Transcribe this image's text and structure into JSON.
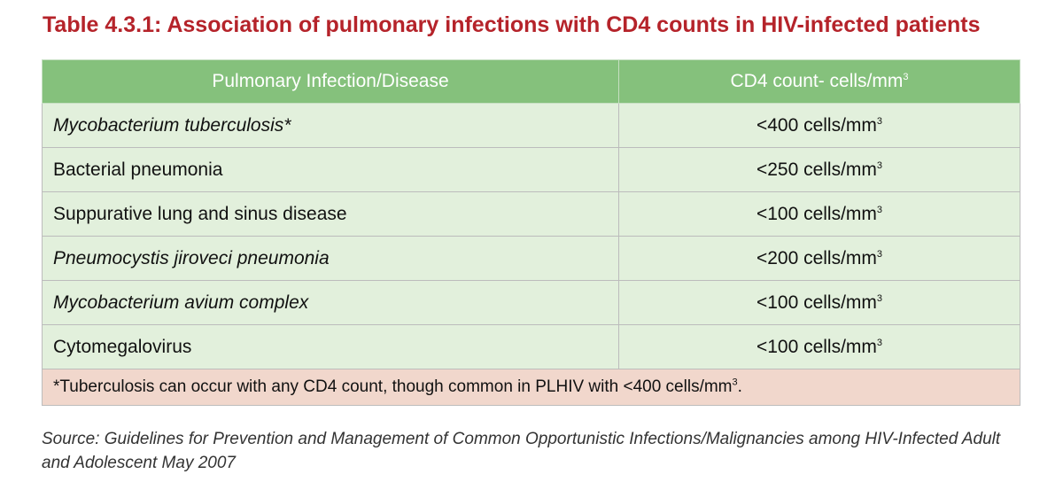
{
  "title": "Table 4.3.1: Association of pulmonary infections with CD4 counts in HIV-infected patients",
  "table": {
    "headers": {
      "disease": "Pulmonary Infection/Disease",
      "cd4": "CD4 count- cells/mm",
      "cd4_sup": "3"
    },
    "rows": [
      {
        "disease": "Mycobacterium tuberculosis*",
        "italic": true,
        "cd4": "<400 cells/mm",
        "sup": "3"
      },
      {
        "disease": "Bacterial pneumonia",
        "italic": false,
        "cd4": "<250 cells/mm",
        "sup": "3"
      },
      {
        "disease": "Suppurative lung and sinus disease",
        "italic": false,
        "cd4": "<100 cells/mm",
        "sup": "3"
      },
      {
        "disease": "Pneumocystis jiroveci pneumonia",
        "italic": true,
        "cd4": "<200 cells/mm",
        "sup": "3"
      },
      {
        "disease": "Mycobacterium avium complex",
        "italic": true,
        "cd4": "<100 cells/mm",
        "sup": "3"
      },
      {
        "disease": "Cytomegalovirus",
        "italic": false,
        "cd4": "<100 cells/mm",
        "sup": "3"
      }
    ],
    "footnote": {
      "text": "*Tuberculosis can occur with any CD4 count, though common in PLHIV with <400 cells/mm",
      "sup": "3",
      "end": "."
    }
  },
  "source": "Source: Guidelines for Prevention and Management of Common Opportunistic Infections/Malignancies among HIV-Infected Adult and Adolescent May 2007",
  "colors": {
    "title": "#b5232a",
    "header_bg": "#85c17c",
    "row_bg": "#e2f0dc",
    "footnote_bg": "#f1d7cc"
  }
}
